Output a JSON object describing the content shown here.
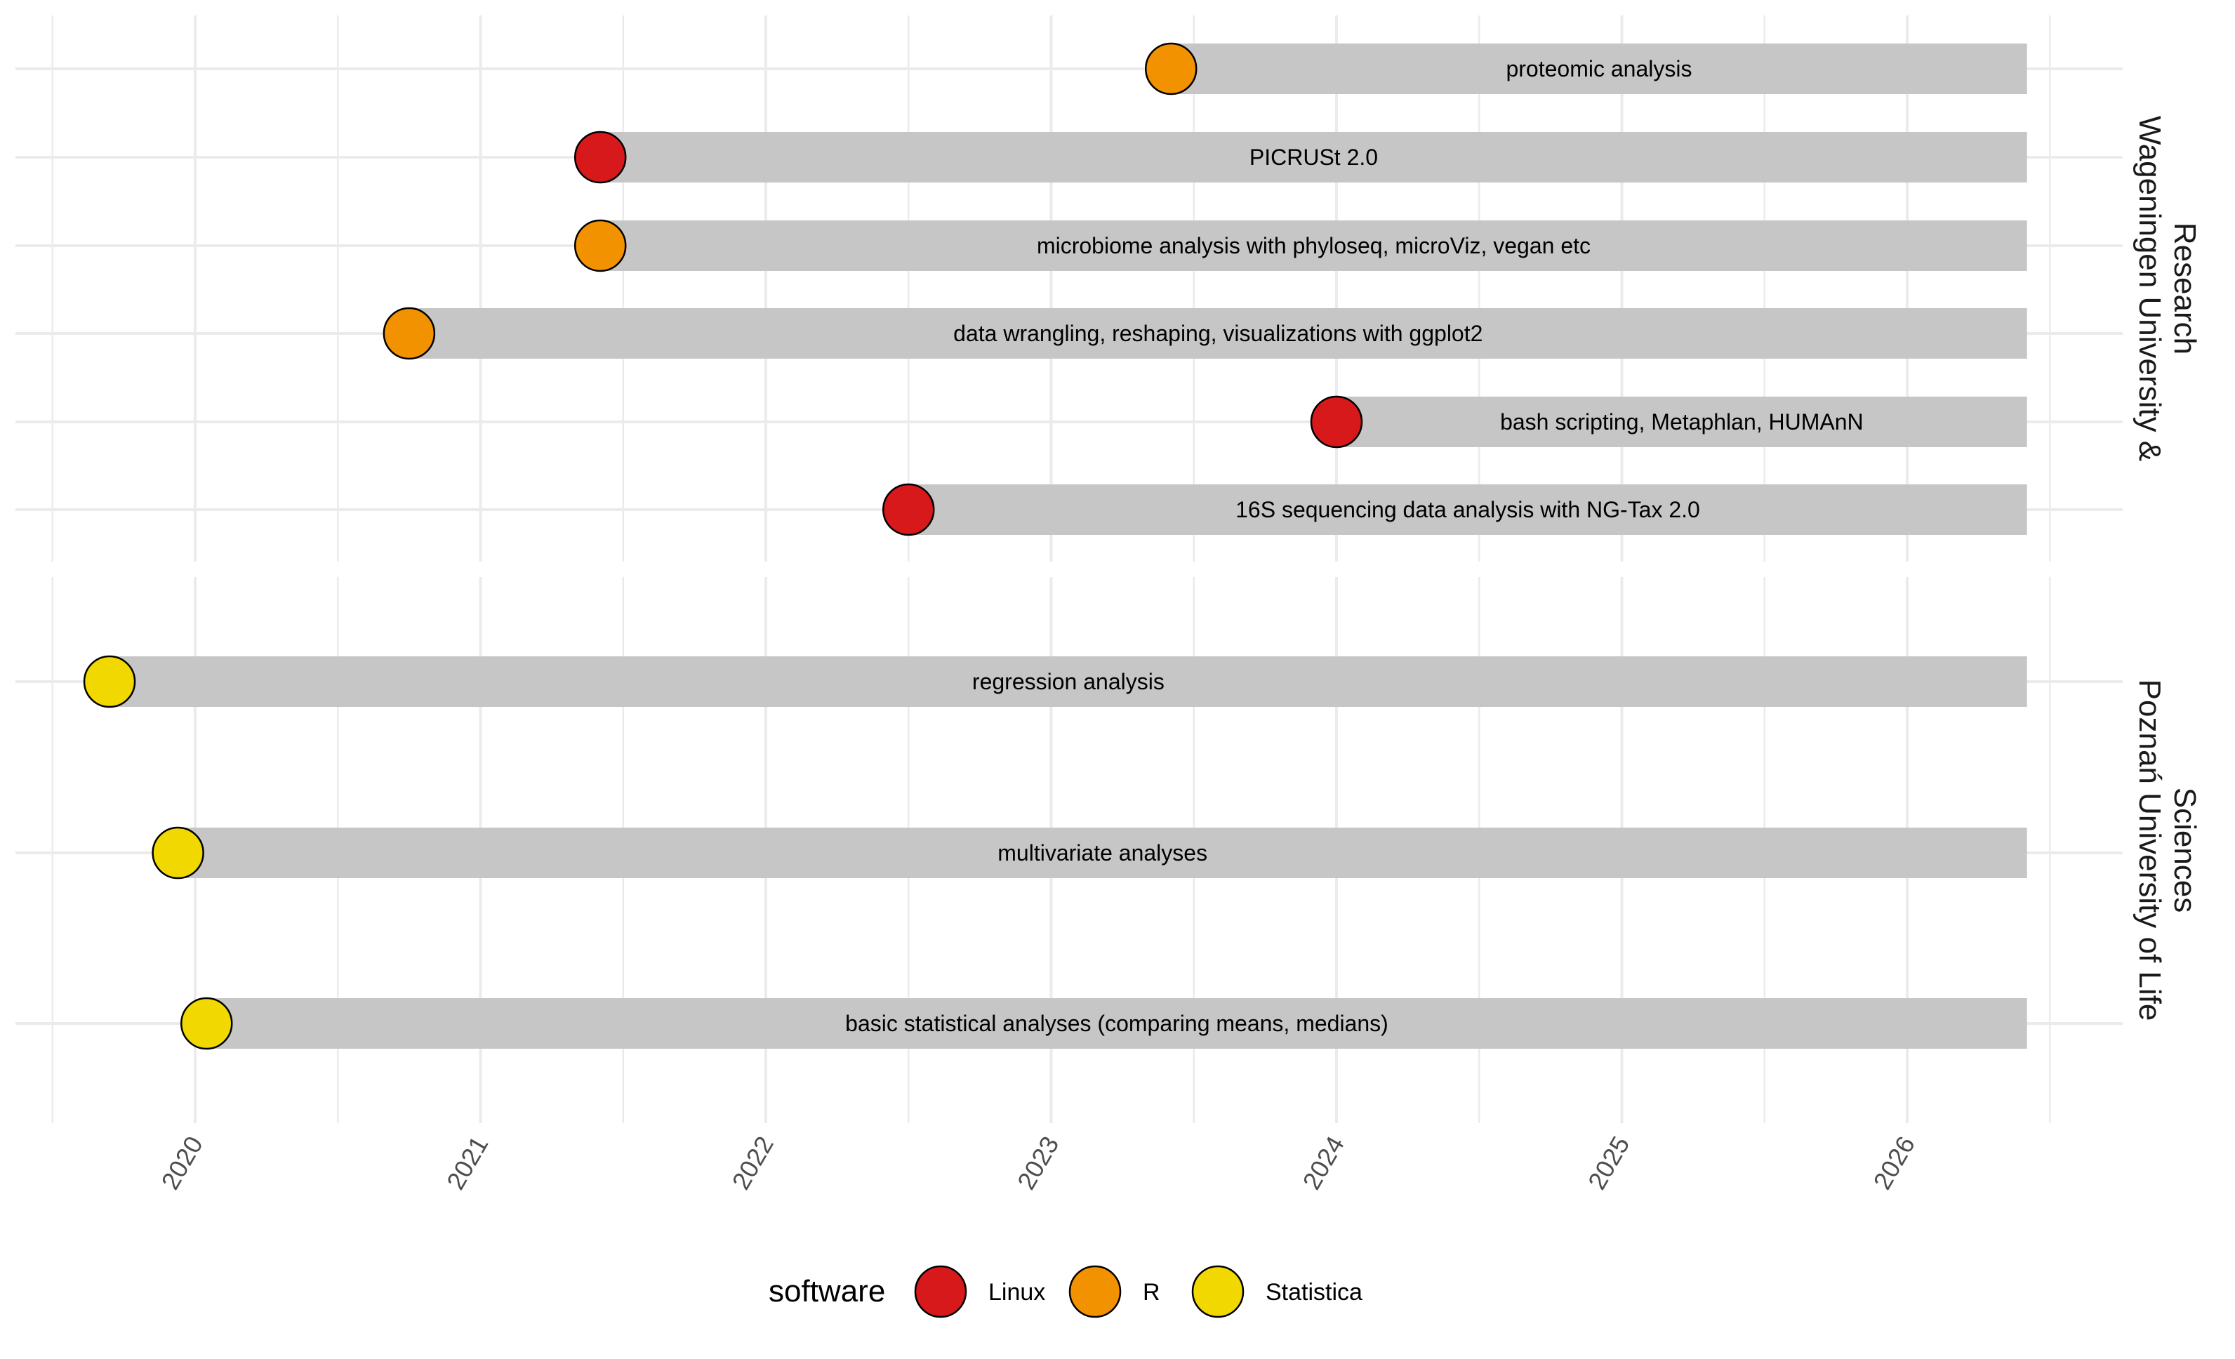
{
  "colors": {
    "Linux": "#d7191c",
    "R": "#f39200",
    "Statistica": "#f0d800",
    "bar": "#c6c6c6",
    "grid": "#ebebeb",
    "point_outline": "#000000"
  },
  "chart_data": {
    "type": "timeline",
    "x_axis": {
      "ticks": [
        "2020",
        "2021",
        "2022",
        "2023",
        "2024",
        "2025",
        "2026"
      ],
      "range": [
        2019.5,
        2026.75
      ],
      "tick_label_rotation": "vertical"
    },
    "bar_end": 2026.42,
    "grid": true,
    "legend": {
      "title": "software",
      "position": "bottom",
      "items": [
        "Linux",
        "R",
        "Statistica"
      ]
    },
    "facets": [
      {
        "label": "Wageningen University & Research",
        "label_lines": [
          "Wageningen University &",
          "Research"
        ],
        "rows": [
          {
            "label": "proteomic analysis",
            "software": "R",
            "start": 2023.42
          },
          {
            "label": "PICRUSt 2.0",
            "software": "Linux",
            "start": 2021.42
          },
          {
            "label": "microbiome analysis with phyloseq, microViz, vegan etc",
            "software": "R",
            "start": 2021.42
          },
          {
            "label": "data wrangling, reshaping, visualizations with ggplot2",
            "software": "R",
            "start": 2020.75
          },
          {
            "label": "bash scripting, Metaphlan, HUMAnN",
            "software": "Linux",
            "start": 2024.0
          },
          {
            "label": "16S sequencing data analysis with NG-Tax 2.0",
            "software": "Linux",
            "start": 2022.5
          }
        ]
      },
      {
        "label": "Poznań University of Life Sciences",
        "label_lines": [
          "Poznań University of Life",
          "Sciences"
        ],
        "rows": [
          {
            "label": "regression analysis",
            "software": "Statistica",
            "start": 2019.7
          },
          {
            "label": "multivariate analyses",
            "software": "Statistica",
            "start": 2019.94
          },
          {
            "label": "basic statistical analyses (comparing means, medians)",
            "software": "Statistica",
            "start": 2020.04
          }
        ]
      }
    ]
  }
}
